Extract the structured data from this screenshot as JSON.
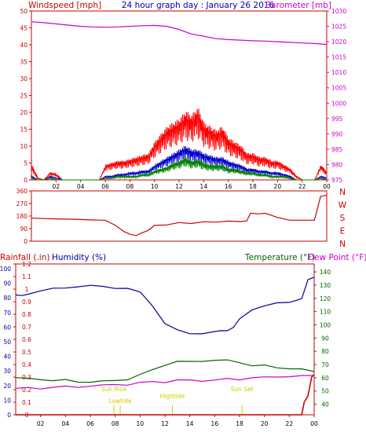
{
  "header": {
    "left_label": "Windspeed [mph]",
    "title": "24 hour graph day : January 26 2016",
    "right_label": "Barometer [mb]"
  },
  "colors": {
    "wind": "#ff0000",
    "avg_wind": "#0000cc",
    "gust_avg": "#008000",
    "barometer": "#cc00cc",
    "direction": "#cc0000",
    "rain": "#cc0000",
    "humidity": "#000099",
    "temperature": "#006600",
    "dewpoint": "#cc00cc",
    "axis": "#cc0000",
    "sun": "#cccc00"
  },
  "chart_data": [
    {
      "type": "line",
      "id": "wind_baro",
      "xlabel": "",
      "x_ticks": [
        "02",
        "04",
        "06",
        "08",
        "10",
        "12",
        "14",
        "16",
        "18",
        "20",
        "22",
        "00"
      ],
      "x_range": [
        0,
        24
      ],
      "left_axis": {
        "label": "Windspeed [mph]",
        "ticks": [
          0,
          5,
          10,
          15,
          20,
          25,
          30,
          35,
          40,
          45,
          50
        ],
        "range": [
          0,
          50
        ]
      },
      "right_axis": {
        "label": "Barometer [mb]",
        "ticks": [
          975,
          980,
          985,
          990,
          995,
          1000,
          1005,
          1010,
          1015,
          1020,
          1025,
          1030
        ],
        "range": [
          975,
          1030
        ]
      },
      "series": [
        {
          "name": "Barometer [mb]",
          "axis": "right",
          "x": [
            0,
            1,
            2,
            3,
            4,
            5,
            6,
            7,
            8,
            9,
            10,
            11,
            12,
            13,
            14,
            15,
            16,
            17,
            18,
            19,
            20,
            21,
            22,
            23,
            24
          ],
          "y": [
            1026.5,
            1026.2,
            1025.8,
            1025.4,
            1025.0,
            1024.8,
            1024.7,
            1024.8,
            1025.0,
            1025.2,
            1025.3,
            1025.0,
            1024.0,
            1022.5,
            1021.8,
            1021.0,
            1020.7,
            1020.5,
            1020.3,
            1020.2,
            1020.0,
            1019.8,
            1019.6,
            1019.4,
            1019.1
          ]
        }
      ],
      "envelopes": [
        {
          "key": "gust",
          "axis": "left",
          "color_key": "wind",
          "x": [
            0,
            0.5,
            1,
            1.5,
            2,
            2.5,
            3,
            3.5,
            4,
            4.5,
            5,
            5.5,
            6,
            6.5,
            7,
            7.5,
            8,
            8.5,
            9,
            9.5,
            10,
            10.5,
            11,
            11.5,
            12,
            12.5,
            13,
            13.5,
            14,
            14.5,
            15,
            15.5,
            16,
            16.5,
            17,
            17.5,
            18,
            18.5,
            19,
            19.5,
            20,
            20.5,
            21,
            21.5,
            22,
            22.5,
            23,
            23.5,
            24
          ],
          "y": [
            4,
            0.5,
            0,
            2,
            1.5,
            0,
            0,
            0,
            0,
            0,
            0,
            0,
            4,
            4.5,
            5,
            5,
            5.5,
            6,
            6.5,
            7,
            10,
            12,
            14,
            15,
            16,
            18,
            17,
            19,
            15,
            14,
            13,
            14,
            11,
            10,
            9,
            7,
            7,
            6,
            6,
            5,
            5,
            4,
            3,
            1,
            0,
            0,
            0,
            4,
            2
          ]
        },
        {
          "key": "avg",
          "axis": "left",
          "color_key": "avg_wind",
          "x": [
            0,
            0.5,
            1,
            1.5,
            2,
            2.5,
            3,
            3.5,
            4,
            4.5,
            5,
            5.5,
            6,
            6.5,
            7,
            7.5,
            8,
            8.5,
            9,
            9.5,
            10,
            10.5,
            11,
            11.5,
            12,
            12.5,
            13,
            13.5,
            14,
            14.5,
            15,
            15.5,
            16,
            16.5,
            17,
            17.5,
            18,
            18.5,
            19,
            19.5,
            20,
            20.5,
            21,
            21.5,
            22,
            22.5,
            23,
            23.5,
            24
          ],
          "y": [
            1,
            0,
            0,
            1,
            0.5,
            0,
            0,
            0,
            0,
            0,
            0,
            0,
            1,
            1,
            1.5,
            1.5,
            2,
            2,
            2.5,
            2.5,
            4,
            5,
            6,
            7,
            8,
            9,
            8,
            8,
            7,
            6.5,
            6,
            6,
            5,
            4.5,
            4,
            3,
            3,
            2.5,
            2.5,
            2,
            2,
            1.5,
            1,
            0,
            0,
            0,
            0,
            1,
            0.5
          ]
        },
        {
          "key": "gust_avg",
          "axis": "left",
          "color_key": "gust_avg",
          "x": [
            0,
            0.5,
            1,
            1.5,
            2,
            2.5,
            3,
            3.5,
            4,
            4.5,
            5,
            5.5,
            6,
            6.5,
            7,
            7.5,
            8,
            8.5,
            9,
            9.5,
            10,
            10.5,
            11,
            11.5,
            12,
            12.5,
            13,
            13.5,
            14,
            14.5,
            15,
            15.5,
            16,
            16.5,
            17,
            17.5,
            18,
            18.5,
            19,
            19.5,
            20,
            20.5,
            21,
            21.5,
            22,
            22.5,
            23,
            23.5,
            24
          ],
          "y": [
            0.5,
            0,
            0,
            0.5,
            0,
            0,
            0,
            0,
            0,
            0,
            0,
            0,
            0.5,
            0.5,
            1,
            1,
            1,
            1,
            1.5,
            1.5,
            2.5,
            3,
            3.5,
            4.5,
            5,
            6,
            5,
            5.5,
            4.5,
            4,
            4,
            4,
            3,
            3,
            2.5,
            2,
            2,
            1.5,
            1.5,
            1,
            1,
            1,
            0.5,
            0,
            0,
            0,
            0,
            0.5,
            0
          ]
        }
      ]
    },
    {
      "type": "line",
      "id": "direction",
      "x_range": [
        0,
        24
      ],
      "left_axis": {
        "ticks": [
          0,
          90,
          180,
          270,
          360
        ],
        "range": [
          0,
          360
        ]
      },
      "compass": [
        "N",
        "W",
        "S",
        "E",
        "N"
      ],
      "series": [
        {
          "name": "Wind direction",
          "x": [
            0,
            1,
            2,
            3,
            4,
            5,
            6,
            6.8,
            7.5,
            8,
            8.5,
            9,
            9.5,
            10,
            11,
            12,
            13,
            14,
            15,
            16,
            17,
            17.5,
            17.8,
            18.5,
            19,
            19.5,
            20,
            21,
            22,
            22.5,
            23,
            23.5,
            24
          ],
          "y": [
            165,
            162,
            160,
            158,
            155,
            152,
            150,
            115,
            70,
            50,
            40,
            60,
            80,
            110,
            120,
            130,
            130,
            135,
            140,
            140,
            140,
            145,
            200,
            195,
            200,
            185,
            170,
            150,
            150,
            150,
            150,
            320,
            330
          ]
        }
      ]
    },
    {
      "type": "line",
      "id": "rain_hum_temp",
      "x_ticks": [
        "02",
        "04",
        "06",
        "08",
        "10",
        "12",
        "14",
        "16",
        "18",
        "20",
        "22",
        "00"
      ],
      "x_range": [
        0,
        24
      ],
      "labels": {
        "rain": "Rainfall (.in)",
        "humidity": "Humidity (%)",
        "temperature": "Temperature (°F)",
        "dewpoint": "Dew Point (°F)"
      },
      "humidity_axis": {
        "ticks": [
          0,
          10,
          20,
          30,
          40,
          50,
          60,
          70,
          80,
          90,
          100
        ],
        "range": [
          0,
          100
        ]
      },
      "rain_axis": {
        "ticks": [
          0,
          0.1,
          0.2,
          0.3,
          0.4,
          0.5,
          0.6,
          0.7,
          0.8,
          0.9,
          1,
          1.1,
          1.2
        ],
        "range": [
          0,
          1.2
        ]
      },
      "temp_axis": {
        "ticks": [
          40,
          50,
          60,
          70,
          80,
          90,
          100,
          110,
          120,
          130,
          140
        ],
        "range": [
          32,
          146
        ]
      },
      "sun_markers": [
        {
          "label": "Sun Rise",
          "x": 7.9
        },
        {
          "label": "Lowtide",
          "x": 8.4
        },
        {
          "label": "Hightide",
          "x": 12.6
        },
        {
          "label": "Sun Set",
          "x": 18.2
        }
      ],
      "series": [
        {
          "name": "Humidity (%)",
          "axis": "humidity",
          "x": [
            0,
            0.5,
            1,
            2,
            3,
            4,
            5,
            6,
            7,
            8,
            9,
            10,
            10.5,
            11,
            11.5,
            12,
            13,
            14,
            15,
            16,
            16.5,
            17,
            17.5,
            18,
            19,
            20,
            21,
            22,
            23,
            23.5,
            24
          ],
          "y": [
            82,
            81,
            83,
            85,
            86,
            87,
            88,
            88,
            88,
            87,
            86,
            84,
            80,
            74,
            68,
            63,
            58,
            55,
            56,
            57,
            57,
            58,
            60,
            65,
            72,
            75,
            76,
            77,
            80,
            92,
            94
          ]
        },
        {
          "name": "Temperature (°F)",
          "axis": "temp",
          "x": [
            0,
            1,
            2,
            3,
            4,
            5,
            6,
            7,
            8,
            9,
            10,
            11,
            12,
            13,
            14,
            15,
            16,
            17,
            18,
            19,
            20,
            21,
            22,
            23,
            24
          ],
          "y": [
            60,
            59,
            59,
            58,
            58,
            57,
            57,
            57,
            58,
            59,
            62,
            66,
            70,
            72,
            72,
            73,
            73,
            73,
            72,
            69,
            69,
            68,
            67,
            66,
            65
          ]
        },
        {
          "name": "Dew Point (°F)",
          "axis": "temp",
          "x": [
            0,
            1,
            2,
            3,
            4,
            5,
            6,
            7,
            8,
            9,
            10,
            11,
            12,
            13,
            14,
            15,
            16,
            17,
            18,
            19,
            20,
            21,
            22,
            23,
            24
          ],
          "y": [
            52,
            52,
            52,
            53,
            53,
            53,
            54,
            54,
            55,
            55,
            56,
            57,
            57,
            58,
            58,
            58,
            58,
            59,
            59,
            60,
            60,
            61,
            61,
            61,
            62
          ]
        },
        {
          "name": "Rainfall (.in)",
          "axis": "rain",
          "x": [
            0,
            20,
            21,
            22,
            22.5,
            23,
            23.2,
            23.5,
            23.8,
            24
          ],
          "y": [
            0,
            0,
            0,
            0,
            0,
            0,
            0.1,
            0.15,
            0.3,
            0.32
          ]
        }
      ]
    }
  ]
}
